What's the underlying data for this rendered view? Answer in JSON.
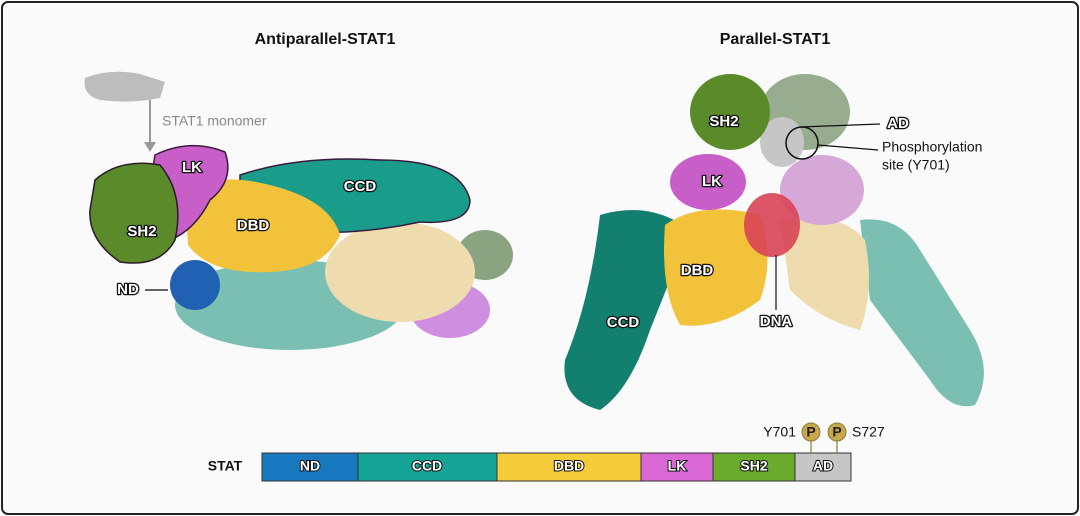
{
  "panels": [
    {
      "title": "Antiparallel-STAT1",
      "labels": [
        "STAT1 monomer",
        "LK",
        "CCD",
        "SH2",
        "DBD",
        "ND"
      ]
    },
    {
      "title": "Parallel-STAT1",
      "labels": [
        "SH2",
        "AD",
        "Phosphorylation",
        "site (Y701)",
        "LK",
        "DBD",
        "DNA",
        "CCD"
      ]
    }
  ],
  "domain_bar": {
    "label": "STAT",
    "domains": [
      "ND",
      "CCD",
      "DBD",
      "LK",
      "SH2",
      "AD"
    ],
    "sites": [
      {
        "name": "Y701",
        "symbol": "P"
      },
      {
        "name": "S727",
        "symbol": "P"
      }
    ]
  }
}
